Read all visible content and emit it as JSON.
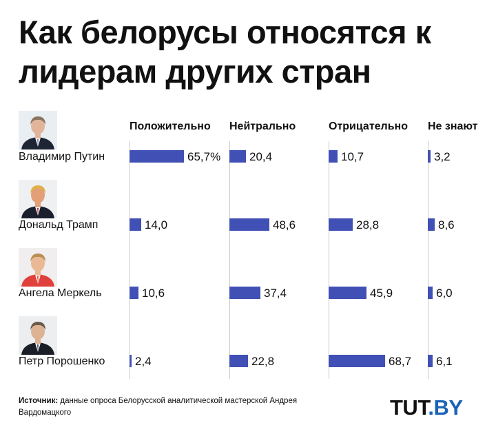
{
  "title": "Как белорусы относятся к лидерам других стран",
  "chart_data": {
    "type": "bar",
    "orientation": "horizontal",
    "categories": [
      "Владимир Путин",
      "Дональд Трамп",
      "Ангела Меркель",
      "Петр Порошенко"
    ],
    "series": [
      {
        "name": "Положительно",
        "values": [
          65.7,
          14.0,
          10.6,
          2.4
        ],
        "labels": [
          "65,7%",
          "14,0",
          "10,6",
          "2,4"
        ]
      },
      {
        "name": "Нейтрально",
        "values": [
          20.4,
          48.6,
          37.4,
          22.8
        ],
        "labels": [
          "20,4",
          "48,6",
          "37,4",
          "22,8"
        ]
      },
      {
        "name": "Отрицательно",
        "values": [
          10.7,
          28.8,
          45.9,
          68.7
        ],
        "labels": [
          "10,7",
          "28,8",
          "45,9",
          "68,7"
        ]
      },
      {
        "name": "Не знают",
        "values": [
          3.2,
          8.6,
          6.0,
          6.1
        ],
        "labels": [
          "3,2",
          "8,6",
          "6,0",
          "6,1"
        ]
      }
    ],
    "unit": "%",
    "bar_color": "#4150b5"
  },
  "source": {
    "label": "Источник:",
    "text": " данные опроса Белорусской аналитической мастерской Андрея Вардомацкого"
  },
  "logo": {
    "part1": "TUT",
    "part2": ".BY"
  }
}
